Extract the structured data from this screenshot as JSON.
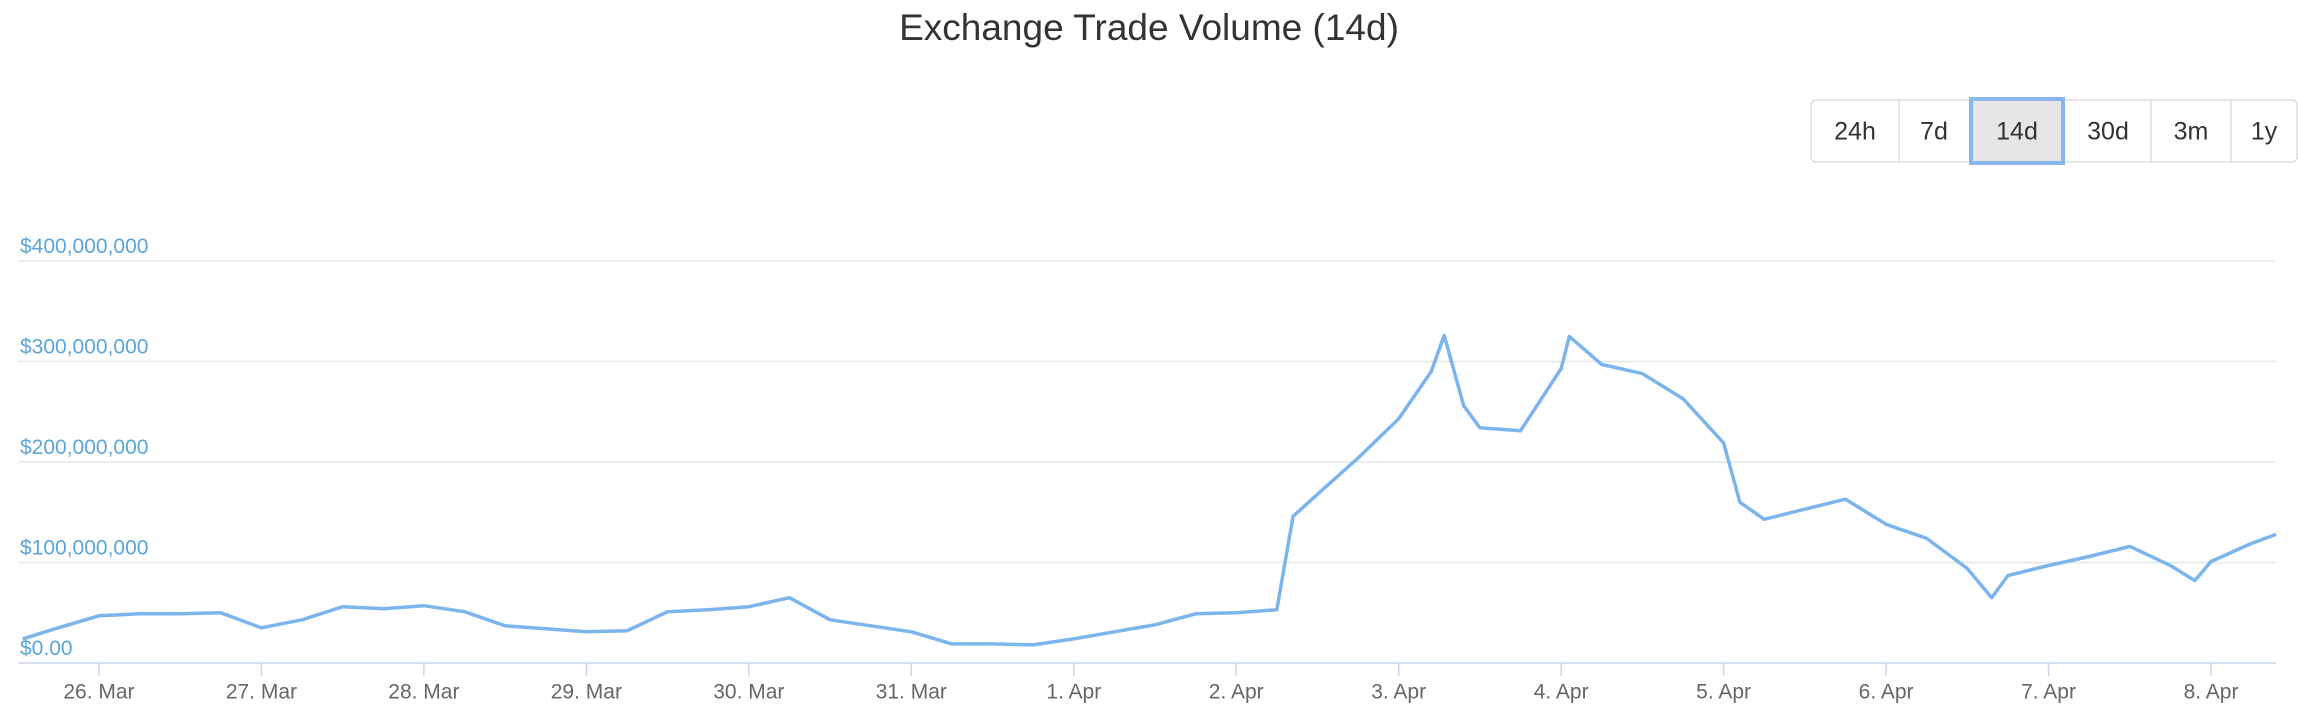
{
  "range_selector": {
    "options": [
      "24h",
      "7d",
      "14d",
      "30d",
      "3m",
      "1y"
    ],
    "selected": "14d"
  },
  "chart_data": {
    "type": "line",
    "title": "Exchange Trade Volume (14d)",
    "x": [
      -0.47,
      -0.25,
      0,
      0.25,
      0.5,
      0.75,
      1.0,
      1.25,
      1.5,
      1.75,
      2.0,
      2.25,
      2.5,
      2.75,
      3.0,
      3.25,
      3.5,
      3.75,
      4.0,
      4.25,
      4.5,
      4.75,
      5.0,
      5.25,
      5.5,
      5.75,
      6.0,
      6.25,
      6.5,
      6.75,
      7.0,
      7.25,
      7.35,
      7.5,
      7.75,
      8.0,
      8.2,
      8.28,
      8.4,
      8.5,
      8.75,
      9.0,
      9.05,
      9.25,
      9.5,
      9.75,
      10.0,
      10.1,
      10.25,
      10.5,
      10.75,
      11.0,
      11.25,
      11.5,
      11.65,
      11.75,
      12.0,
      12.25,
      12.5,
      12.75,
      12.9,
      13.0,
      13.25,
      13.4
    ],
    "series": [
      {
        "name": "Trade Volume",
        "color": "#7cb5ec",
        "values": [
          24000000,
          35000000,
          47000000,
          49000000,
          49000000,
          50000000,
          35000000,
          43000000,
          56000000,
          54000000,
          57000000,
          51000000,
          37000000,
          34000000,
          31000000,
          32000000,
          51000000,
          53000000,
          56000000,
          65000000,
          43000000,
          37000000,
          31000000,
          19000000,
          19000000,
          18000000,
          24000000,
          31000000,
          38000000,
          49000000,
          50000000,
          53000000,
          146000000,
          168000000,
          204000000,
          243000000,
          290000000,
          326000000,
          256000000,
          234000000,
          231000000,
          293000000,
          325000000,
          297000000,
          288000000,
          263000000,
          219000000,
          160000000,
          143000000,
          153000000,
          163000000,
          138000000,
          124000000,
          94000000,
          65000000,
          87000000,
          97000000,
          106000000,
          116000000,
          97000000,
          82000000,
          101000000,
          119000000,
          128000000
        ]
      }
    ],
    "xlim": [
      -0.47,
      13.4
    ],
    "xticks": [
      {
        "value": 0,
        "label": "26. Mar"
      },
      {
        "value": 1,
        "label": "27. Mar"
      },
      {
        "value": 2,
        "label": "28. Mar"
      },
      {
        "value": 3,
        "label": "29. Mar"
      },
      {
        "value": 4,
        "label": "30. Mar"
      },
      {
        "value": 5,
        "label": "31. Mar"
      },
      {
        "value": 6,
        "label": "1. Apr"
      },
      {
        "value": 7,
        "label": "2. Apr"
      },
      {
        "value": 8,
        "label": "3. Apr"
      },
      {
        "value": 9,
        "label": "4. Apr"
      },
      {
        "value": 10,
        "label": "5. Apr"
      },
      {
        "value": 11,
        "label": "6. Apr"
      },
      {
        "value": 12,
        "label": "7. Apr"
      },
      {
        "value": 13,
        "label": "8. Apr"
      }
    ],
    "ylim": [
      0,
      400000000
    ],
    "yticks": [
      {
        "value": 0,
        "label": "$0.00"
      },
      {
        "value": 100000000,
        "label": "$100,000,000"
      },
      {
        "value": 200000000,
        "label": "$200,000,000"
      },
      {
        "value": 300000000,
        "label": "$300,000,000"
      },
      {
        "value": 400000000,
        "label": "$400,000,000"
      }
    ],
    "grid": true
  }
}
